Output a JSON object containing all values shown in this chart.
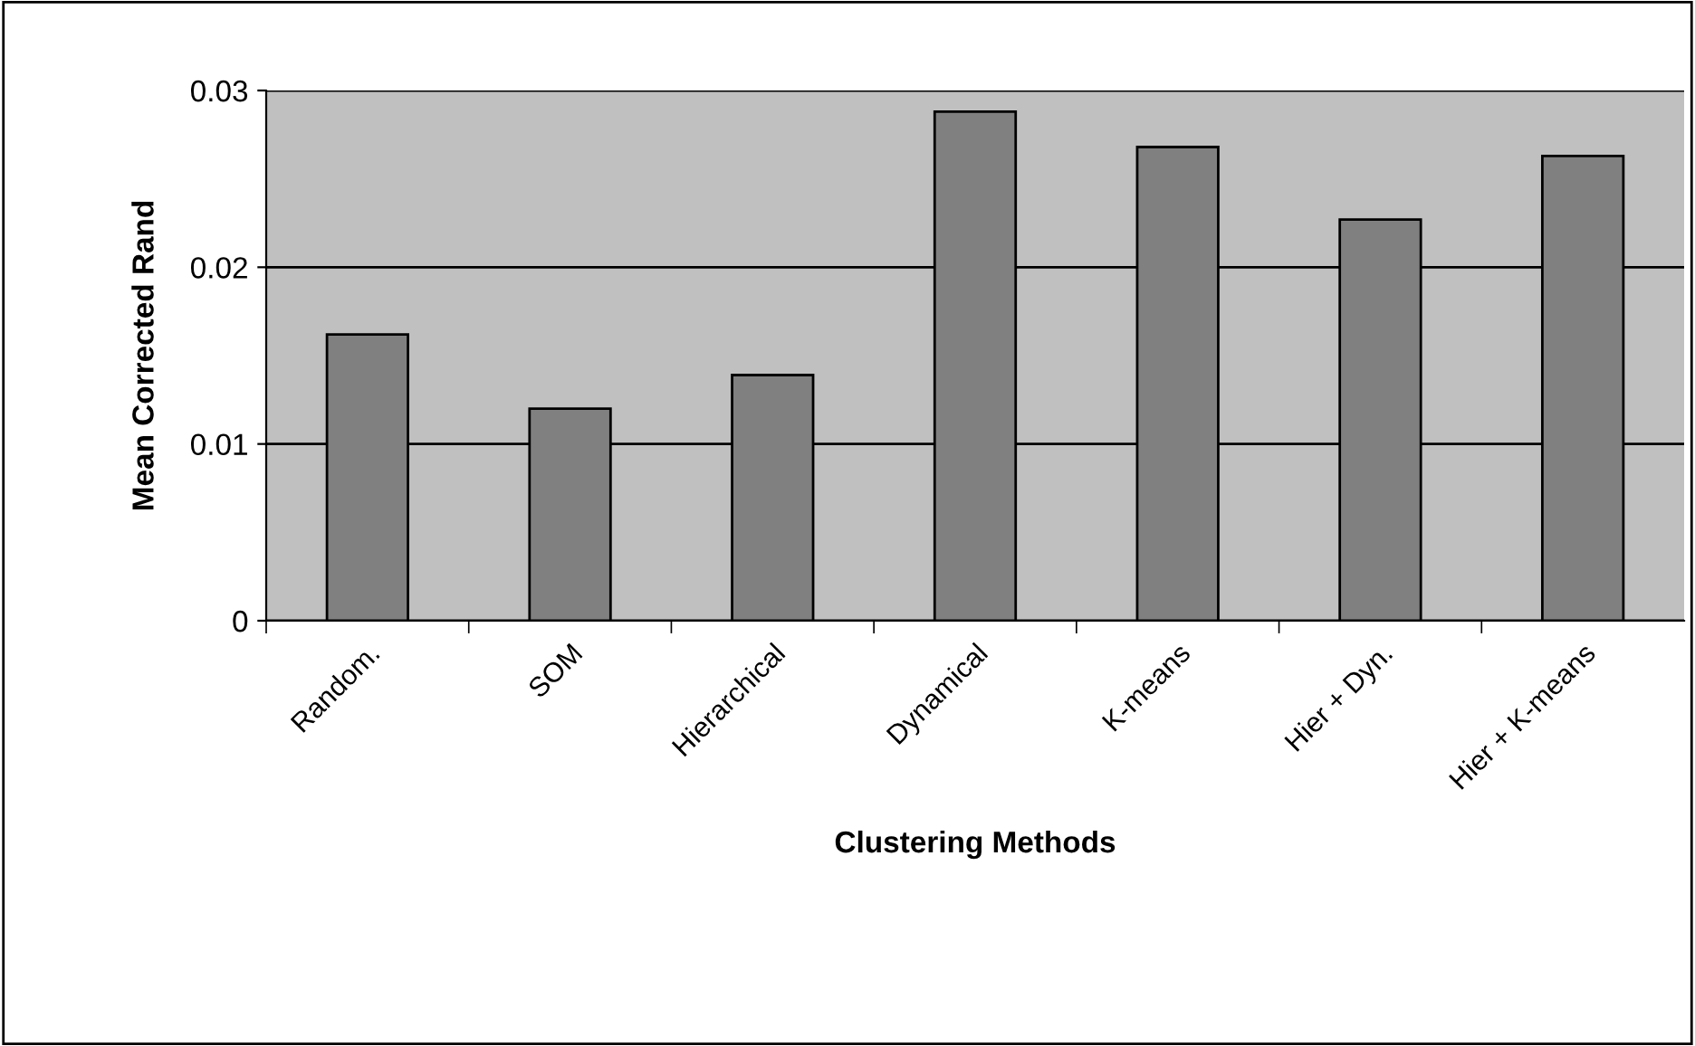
{
  "chart_data": {
    "type": "bar",
    "xlabel": "Clustering Methods",
    "ylabel": "Mean Corrected Rand",
    "categories": [
      "Random.",
      "SOM",
      "Hierarchical",
      "Dynamical",
      "K-means",
      "Hier + Dyn.",
      "Hier + K-means"
    ],
    "values": [
      0.0162,
      0.012,
      0.0139,
      0.0288,
      0.0268,
      0.0227,
      0.0263
    ],
    "color": "#808080",
    "ylim": [
      0,
      0.03
    ],
    "yticks": [
      0,
      0.01,
      0.02,
      0.03
    ],
    "grid": "y",
    "legend": false
  }
}
